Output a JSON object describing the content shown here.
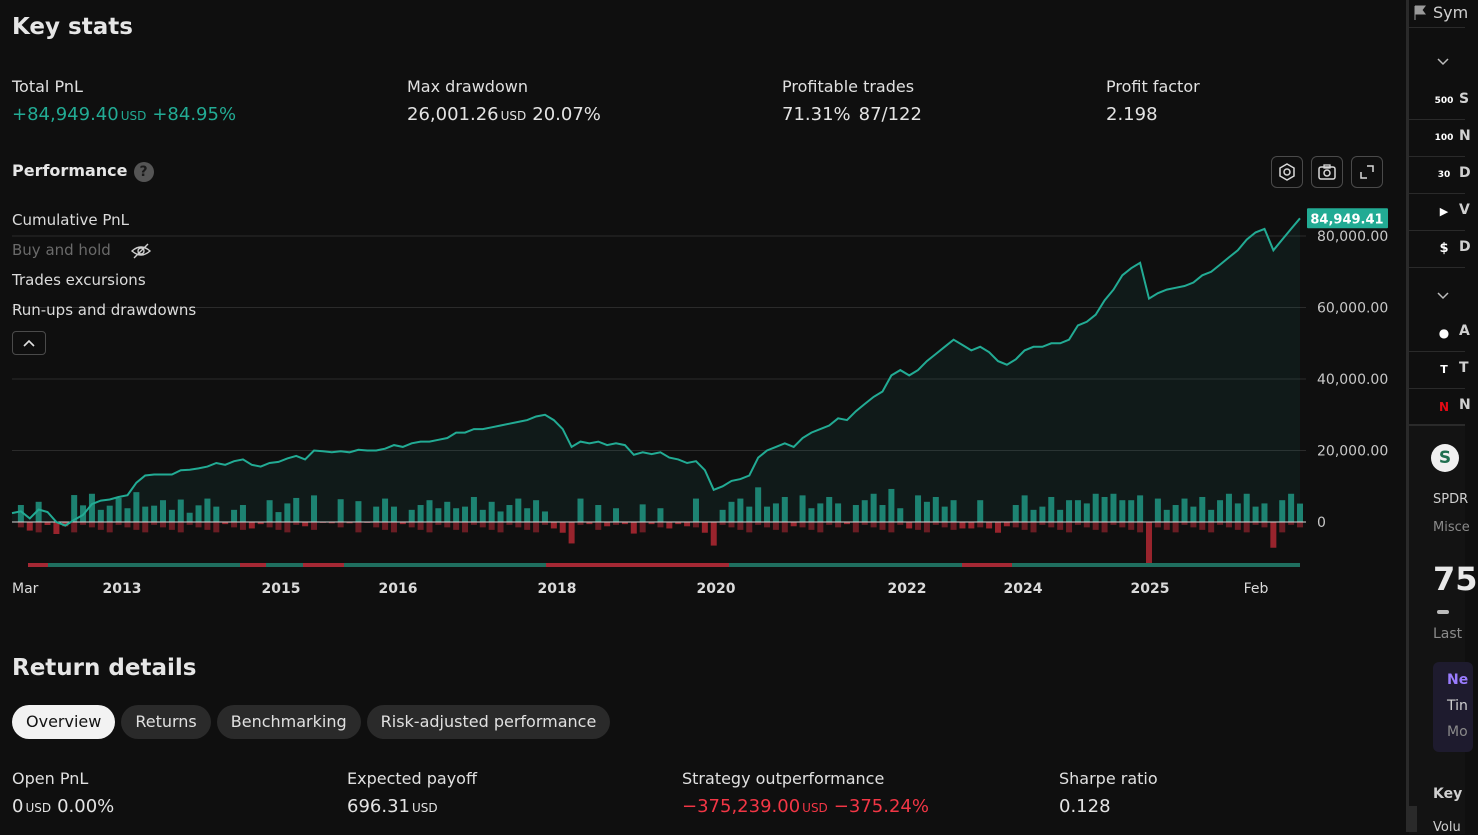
{
  "key_stats": {
    "title": "Key stats",
    "items": [
      {
        "label": "Total PnL",
        "value": "+84,949.40",
        "unit": "USD",
        "extra": "+84.95%",
        "tone": "green"
      },
      {
        "label": "Max drawdown",
        "value": "26,001.26",
        "unit": "USD",
        "extra": "20.07%",
        "tone": "neutral"
      },
      {
        "label": "Profitable trades",
        "value": "71.31%",
        "unit": "",
        "extra": "87/122",
        "tone": "neutral"
      },
      {
        "label": "Profit factor",
        "value": "2.198",
        "unit": "",
        "extra": "",
        "tone": "neutral"
      }
    ]
  },
  "performance": {
    "title": "Performance",
    "help_icon": "?",
    "tools": [
      "settings-icon",
      "camera-icon",
      "fullscreen-icon"
    ],
    "legend": [
      "Cumulative PnL",
      "Buy and hold",
      "Trades excursions",
      "Run-ups and drawdowns"
    ],
    "hidden_legend_icon": "eye-off-icon",
    "collapse_icon": "chevron-up-icon"
  },
  "chart_data": {
    "type": "line",
    "title": "",
    "x_labels": [
      "Mar",
      "2013",
      "2015",
      "2016",
      "2018",
      "2020",
      "2022",
      "2024",
      "2025",
      "Feb"
    ],
    "y_ticks": [
      "80,000.00",
      "60,000.00",
      "40,000.00",
      "20,000.00",
      "0"
    ],
    "ylim": [
      -12000,
      85000
    ],
    "last_value_label": "84,949.41",
    "grid": true,
    "series": [
      {
        "name": "Cumulative PnL",
        "color": "#22ab94",
        "values": [
          2500,
          3000,
          1000,
          3500,
          2800,
          0,
          -1000,
          600,
          2000,
          5000,
          6000,
          6300,
          7000,
          7500,
          11000,
          13000,
          13300,
          13300,
          13300,
          14500,
          14600,
          15000,
          15500,
          16500,
          16000,
          17000,
          17500,
          16000,
          15500,
          16500,
          16800,
          17800,
          18500,
          17500,
          20000,
          19800,
          19500,
          19800,
          19500,
          20200,
          20000,
          20000,
          20500,
          21500,
          21000,
          22000,
          22500,
          22500,
          23000,
          23500,
          25000,
          25000,
          26000,
          26000,
          26500,
          27000,
          27500,
          28000,
          28500,
          29500,
          30000,
          28500,
          26000,
          21000,
          22500,
          22000,
          22500,
          21500,
          22000,
          21500,
          18800,
          19500,
          19000,
          19500,
          18000,
          17500,
          16500,
          17000,
          14500,
          9000,
          10000,
          11500,
          12000,
          13000,
          18000,
          20000,
          21000,
          22000,
          21000,
          23500,
          25000,
          26000,
          27000,
          29000,
          28500,
          31000,
          33000,
          35000,
          36500,
          41000,
          42500,
          41000,
          42500,
          45000,
          47000,
          49000,
          51000,
          49500,
          48000,
          49000,
          47500,
          45000,
          44000,
          45500,
          48000,
          49000,
          49000,
          50000,
          50000,
          51000,
          55000,
          56000,
          58000,
          62000,
          65000,
          69000,
          71000,
          72500,
          62500,
          64000,
          65000,
          65500,
          66000,
          67000,
          69000,
          70000,
          72000,
          74000,
          76000,
          79000,
          81000,
          82000,
          76000,
          79000,
          82000,
          84949
        ]
      }
    ]
  },
  "return_details": {
    "title": "Return details",
    "tabs": [
      "Overview",
      "Returns",
      "Benchmarking",
      "Risk-adjusted performance"
    ],
    "active_tab": 0,
    "stats": [
      {
        "label": "Open PnL",
        "value": "0",
        "unit": "USD",
        "extra": "0.00%",
        "tone": "neutral"
      },
      {
        "label": "Expected payoff",
        "value": "696.31",
        "unit": "USD",
        "extra": "",
        "tone": "neutral"
      },
      {
        "label": "Strategy outperformance",
        "value": "−375,239.00",
        "unit": "USD",
        "extra": "−375.24%",
        "tone": "red"
      },
      {
        "label": "Sharpe ratio",
        "value": "0.128",
        "unit": "",
        "extra": "",
        "tone": "neutral"
      }
    ]
  },
  "rail": {
    "header": "Sym",
    "symbols": [
      {
        "badge": "500",
        "color": "#c8102e",
        "text": "S"
      },
      {
        "badge": "100",
        "color": "#1a8ccc",
        "text": "N"
      },
      {
        "badge": "30",
        "color": "#1a9acc",
        "text": "D"
      },
      {
        "badge": "▶",
        "color": "#2ca02c",
        "text": "V"
      },
      {
        "badge": "$",
        "color": "#1f8f5f",
        "text": "D"
      },
      {
        "badge": "",
        "color": "#1a1a1a",
        "text": "A"
      },
      {
        "badge": "T",
        "color": "#e31937",
        "text": "T"
      },
      {
        "badge": "N",
        "color": "#111111",
        "text": "N"
      }
    ],
    "detail": {
      "logo": "S",
      "name": "SPDR",
      "sub": "Misce",
      "price": "75",
      "last": "Last",
      "news_title": "Ne",
      "news_line1": "Tin",
      "news_line2": "Mo",
      "key": "Key",
      "volume": "Volu"
    }
  }
}
